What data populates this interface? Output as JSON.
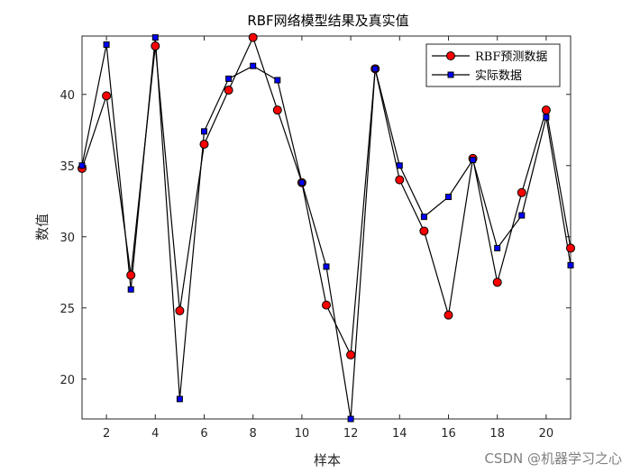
{
  "chart_data": {
    "type": "line",
    "title": "RBF网络模型结果及真实值",
    "xlabel": "样本",
    "ylabel": "数值",
    "xlim": [
      1,
      21
    ],
    "ylim": [
      17.2,
      44.1
    ],
    "xticks": [
      2,
      4,
      6,
      8,
      10,
      12,
      14,
      16,
      18,
      20
    ],
    "yticks": [
      20,
      25,
      30,
      35,
      40
    ],
    "grid": false,
    "legend_position": "top-right",
    "x": [
      1,
      2,
      3,
      4,
      5,
      6,
      7,
      8,
      9,
      10,
      11,
      12,
      13,
      14,
      15,
      16,
      17,
      18,
      19,
      20,
      21
    ],
    "series": [
      {
        "name": "RBF预测数据",
        "marker": "circle",
        "marker_color": "#ff0000",
        "line_color": "#000000",
        "values": [
          34.8,
          39.9,
          27.3,
          43.4,
          24.8,
          36.5,
          40.3,
          44.0,
          38.9,
          33.8,
          25.2,
          21.7,
          41.8,
          34.0,
          30.4,
          24.5,
          35.5,
          26.8,
          33.1,
          38.9,
          29.2
        ]
      },
      {
        "name": "实际数据",
        "marker": "square",
        "marker_color": "#0000ff",
        "line_color": "#000000",
        "values": [
          35.0,
          43.5,
          26.3,
          44.0,
          18.6,
          37.4,
          41.1,
          42.0,
          41.0,
          33.8,
          27.9,
          17.2,
          41.8,
          35.0,
          31.4,
          32.8,
          35.4,
          29.2,
          31.5,
          38.4,
          28.0
        ]
      }
    ]
  },
  "watermark": "CSDN @机器学习之心"
}
